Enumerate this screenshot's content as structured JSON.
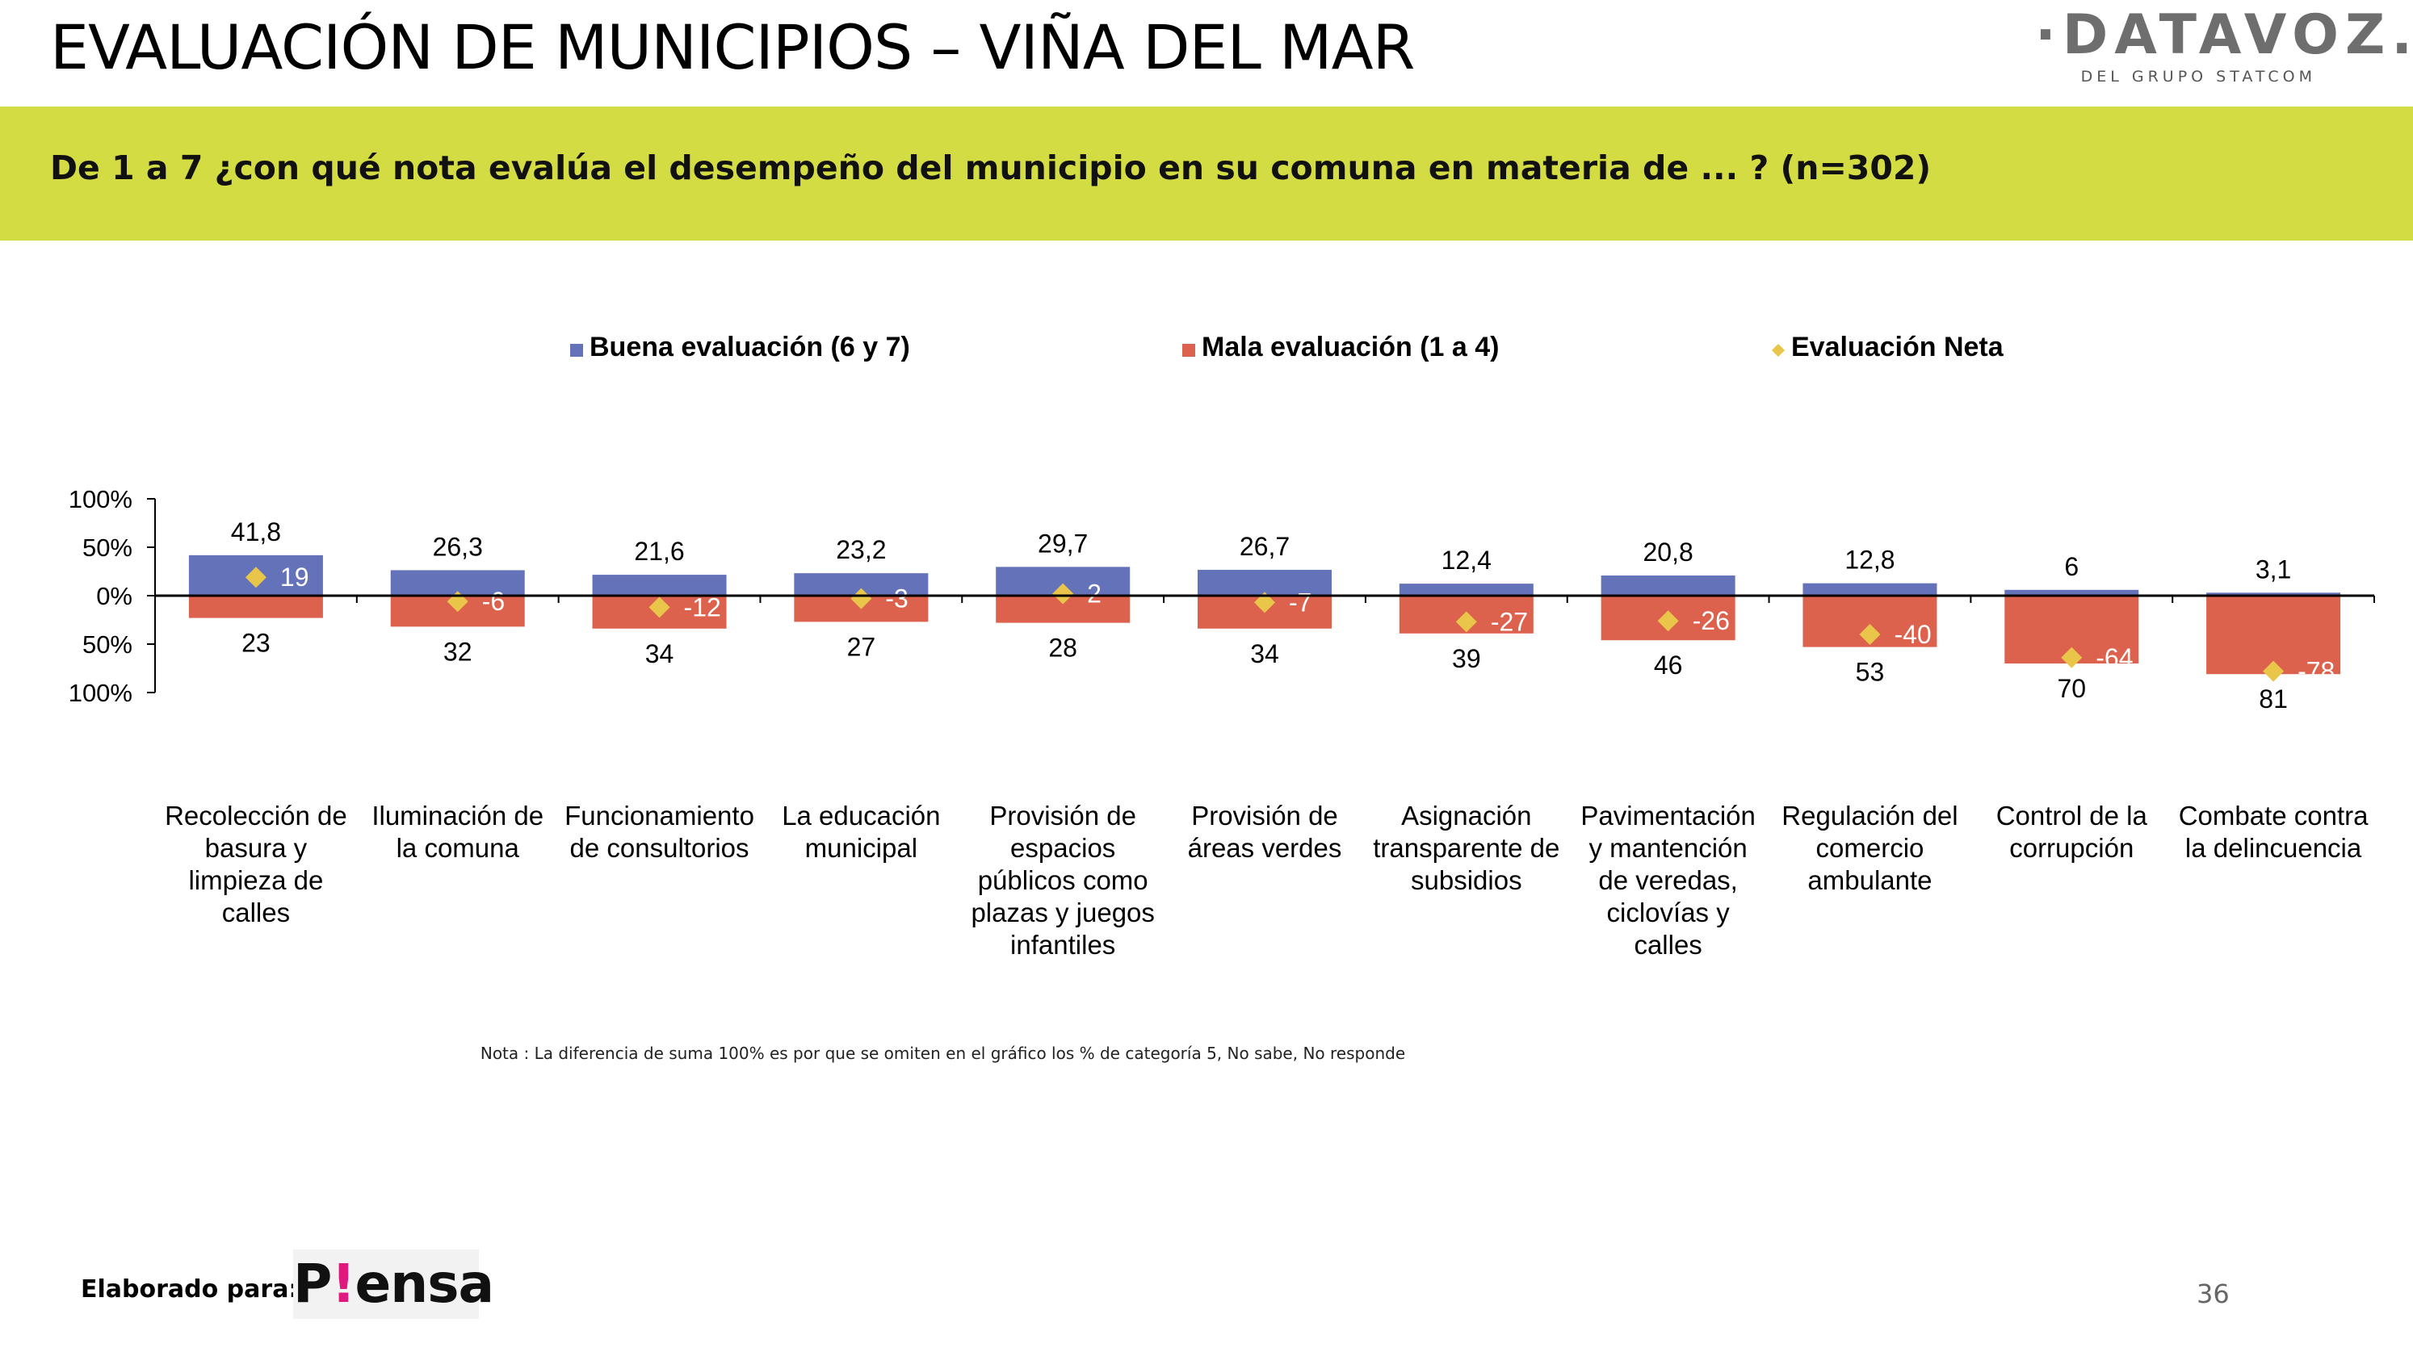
{
  "header": {
    "title": "EVALUACIÓN DE MUNICIPIOS – VIÑA DEL MAR",
    "logo_text": "·DATAVOZ.",
    "logo_subtext": "DEL GRUPO STATCOM"
  },
  "banner": {
    "question": "De 1 a 7 ¿con qué nota evalúa el desempeño del municipio en su comuna en materia de ... ? (n=302)"
  },
  "colors": {
    "banner": "#d4dc44",
    "good": "#6472ba",
    "bad": "#dd624d",
    "net": "#e9c64a"
  },
  "chart_data": {
    "type": "bar",
    "legend_position": "top",
    "y_ticks": [
      "100%",
      "50%",
      "0%",
      "50%",
      "100%"
    ],
    "ylim": [
      -100,
      100
    ],
    "categories": [
      "Recolección de basura y limpieza de calles",
      "Iluminación de la comuna",
      "Funcionamiento de consultorios",
      "La educación municipal",
      "Provisión de espacios públicos como plazas y juegos infantiles",
      "Provisión de áreas verdes",
      "Asignación transparente de subsidios",
      "Pavimentación y mantención de veredas, ciclovías y calles",
      "Regulación del comercio ambulante",
      "Control de la corrupción",
      "Combate contra la delincuencia"
    ],
    "category_lines": [
      [
        "Recolección de",
        "basura y",
        "limpieza de",
        "calles"
      ],
      [
        "Iluminación de",
        "la comuna"
      ],
      [
        "Funcionamiento",
        "de consultorios"
      ],
      [
        "La educación",
        "municipal"
      ],
      [
        "Provisión de",
        "espacios",
        "públicos como",
        "plazas y juegos",
        "infantiles"
      ],
      [
        "Provisión de",
        "áreas verdes"
      ],
      [
        "Asignación",
        "transparente de",
        "subsidios"
      ],
      [
        "Pavimentación",
        "y mantención",
        "de veredas,",
        "ciclovías y",
        "calles"
      ],
      [
        "Regulación del",
        "comercio",
        "ambulante"
      ],
      [
        "Control de la",
        "corrupción"
      ],
      [
        "Combate contra",
        "la delincuencia"
      ]
    ],
    "series": [
      {
        "name": "Buena evaluación (6 y 7)",
        "values": [
          41.8,
          26.3,
          21.6,
          23.2,
          29.7,
          26.7,
          12.4,
          20.8,
          12.8,
          6,
          3.1
        ],
        "labels": [
          "41,8",
          "26,3",
          "21,6",
          "23,2",
          "29,7",
          "26,7",
          "12,4",
          "20,8",
          "12,8",
          "6",
          "3,1"
        ]
      },
      {
        "name": "Mala evaluación (1 a 4)",
        "values": [
          23,
          32,
          34,
          27,
          28,
          34,
          39,
          46,
          53,
          70,
          81
        ],
        "labels": [
          "23",
          "32",
          "34",
          "27",
          "28",
          "34",
          "39",
          "46",
          "53",
          "70",
          "81"
        ]
      },
      {
        "name": "Evaluación Neta",
        "values": [
          19,
          -6,
          -12,
          -3,
          2,
          -7,
          -27,
          -26,
          -40,
          -64,
          -78
        ],
        "labels": [
          "19",
          "-6",
          "-12",
          "-3",
          "2",
          "-7",
          "-27",
          "-26",
          "-40",
          "-64",
          "-78"
        ]
      }
    ]
  },
  "note": "Nota : La diferencia de suma 100% es por que se omiten en el gráfico los % de categoría 5, No sabe, No responde",
  "footer": {
    "label": "Elaborado para:",
    "logo_prefix": "P",
    "logo_mark": "!",
    "logo_rest": "ensa",
    "page_number": "36"
  }
}
